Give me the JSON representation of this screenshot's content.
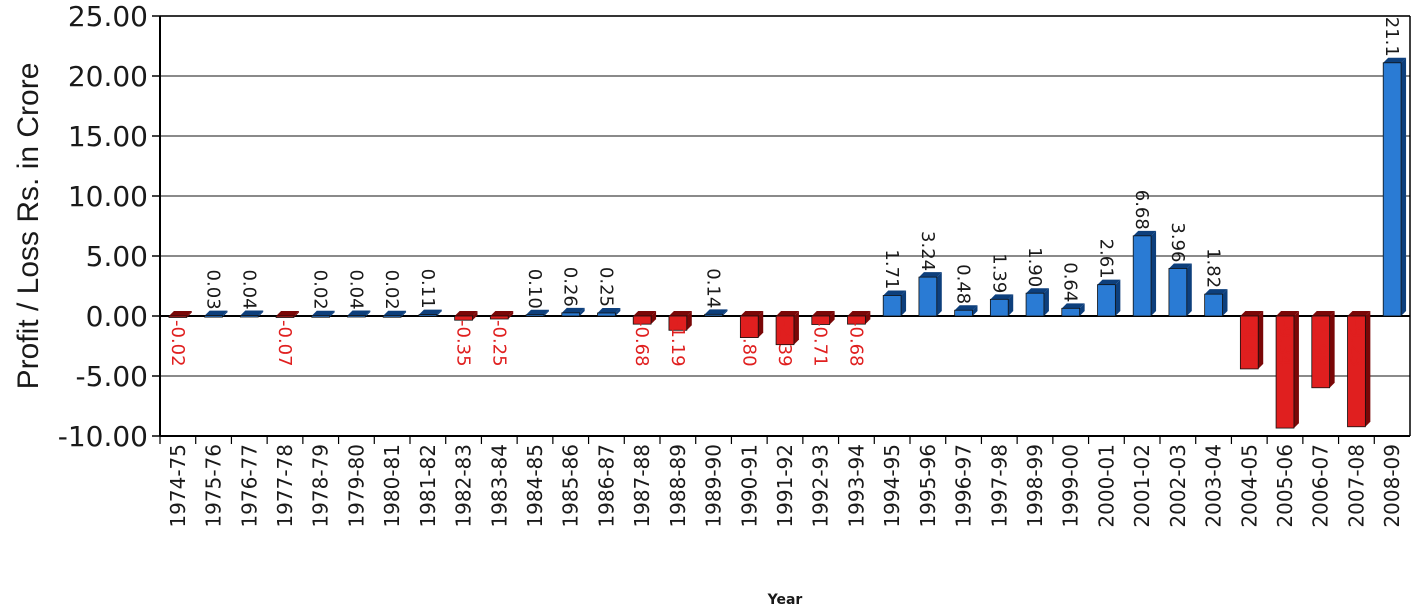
{
  "chart_data": {
    "type": "bar",
    "title": "",
    "xlabel": "Year",
    "ylabel": "Profit / Loss Rs. in Crore",
    "ylim": [
      -10,
      25
    ],
    "yticks": [
      "-10.00",
      "-5.00",
      "0.00",
      "5.00",
      "10.00",
      "15.00",
      "20.00",
      "25.00"
    ],
    "grid": true,
    "legend": "none",
    "colors": {
      "positive": "#2a7bd4",
      "negative": "#e01f1f",
      "positive_label": "#1a1a1a",
      "negative_label": "#e01f1f"
    },
    "categories": [
      "1974-75",
      "1975-76",
      "1976-77",
      "1977-78",
      "1978-79",
      "1979-80",
      "1980-81",
      "1981-82",
      "1982-83",
      "1983-84",
      "1984-85",
      "1985-86",
      "1986-87",
      "1987-88",
      "1988-89",
      "1989-90",
      "1990-91",
      "1991-92",
      "1992-93",
      "1993-94",
      "1994-95",
      "1995-96",
      "1996-97",
      "1997-98",
      "1998-99",
      "1999-00",
      "2000-01",
      "2001-02",
      "2002-03",
      "2003-04",
      "2004-05",
      "2005-06",
      "2006-07",
      "2007-08",
      "2008-09"
    ],
    "values": [
      -0.02,
      0.03,
      0.04,
      -0.07,
      0.02,
      0.04,
      0.02,
      0.11,
      -0.35,
      -0.25,
      0.1,
      0.26,
      0.25,
      -0.68,
      -1.19,
      0.14,
      -1.8,
      -2.39,
      -0.71,
      -0.68,
      1.71,
      3.24,
      0.48,
      1.39,
      1.9,
      0.64,
      2.61,
      6.68,
      3.96,
      1.82,
      -4.41,
      -9.34,
      -5.98,
      -9.23,
      21.1
    ],
    "data_labels": [
      "-0.02",
      "0.03",
      "0.04",
      "-0.07",
      "0.02",
      "0.04",
      "0.02",
      "0.11",
      "-0.35",
      "-0.25",
      "0.10",
      "0.26",
      "0.25",
      "-0.68",
      "-1.19",
      "0.14",
      "-1.80",
      "-2.39",
      "-0.71",
      "-0.68",
      "1.71",
      "3.24",
      "0.48",
      "1.39",
      "1.90",
      "0.64",
      "2.61",
      "6.68",
      "3.96",
      "1.82",
      "-4.41",
      "-9.34",
      "-5.98",
      "-9.23",
      "21.1"
    ]
  }
}
